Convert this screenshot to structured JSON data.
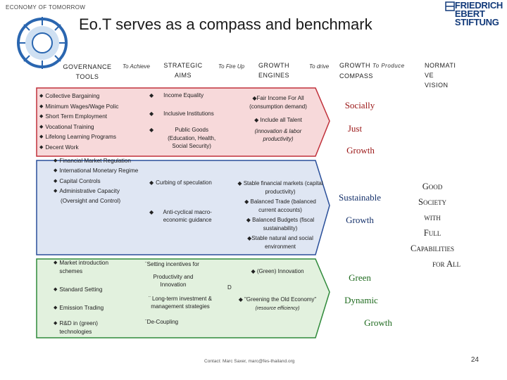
{
  "brand": "ECONOMY OF TOMORROW",
  "title": "Eo.T serves as a compass and benchmark",
  "fes_lines": [
    "FRIEDRICH",
    "EBERT",
    "STIFTUNG"
  ],
  "headers": {
    "governance": [
      "GOVERNANCE",
      "TOOLS"
    ],
    "to_achieve": "To Achieve",
    "strategic": [
      "STRATEGIC",
      "AIMS"
    ],
    "to_fire_up": "To Fire Up",
    "growth_engines": [
      "GROWTH",
      "ENGINES"
    ],
    "to_drive": "To drive",
    "growth_compass": [
      "GROWTH ",
      "To Produce",
      "COMPASS"
    ],
    "normative": [
      "NORMATI",
      "VE",
      "VISION"
    ]
  },
  "red_row": {
    "tools": [
      "Collective Bargaining",
      "Minimum Wages/Wage Polic",
      "Short Term Employment",
      "Vocational Training",
      "Lifelong Learning Programs",
      "Decent Work"
    ],
    "aims": [
      "Income Equality",
      "Inclusive Institutions",
      "Public Goods (Education, Health, Social Security)"
    ],
    "engines": [
      "◆Fair Income For All (consumption demand)",
      "◆ Include all Talent",
      "(innovation & labor productivity)"
    ],
    "compass": [
      "Socially",
      "Just",
      "Growth"
    ]
  },
  "blue_row": {
    "tools": [
      "Financial Market Regulation",
      "International Monetary Regime",
      "Capital Controls",
      "Administrative Capacity",
      "(Oversight and Control)"
    ],
    "aims": [
      "Curbing of speculation",
      "Anti-cyclical macro-economic guidance"
    ],
    "engines": [
      "◆ Stable financial markets (capital productivity)",
      "◆ Balanced Trade (balanced current accounts)",
      "◆ Balanced Budgets (fiscal sustainability)",
      "◆Stable natural and social environment"
    ],
    "compass": [
      "Sustainable",
      "Growth"
    ]
  },
  "green_row": {
    "tools": [
      "Market introduction schemes",
      "Standard Setting",
      "Emission Trading",
      "R&D in (green) technologies"
    ],
    "aims": [
      "¨Setting incentives for",
      "Productivity and Innovation",
      "¨ Long-term investment & management strategies",
      "¨De-Coupling"
    ],
    "stray": "D",
    "engines": [
      "◆ (Green) Innovation",
      "◆ \"Greening the Old Economy\"",
      "(resource efficiency)"
    ],
    "compass": [
      "Green",
      "Dynamic",
      "Growth"
    ]
  },
  "vision": [
    "Good",
    "Society",
    "with",
    "Full",
    "Capabilities",
    "for All"
  ],
  "footer": "Contact: Marc Saxer, marc@fes-thailand.org",
  "page_number": "24",
  "colors": {
    "red_band": "#f7d9da",
    "red_border": "#c0303a",
    "blue_band": "#dfe6f3",
    "blue_border": "#2a4f9a",
    "green_band": "#e2f1de",
    "green_border": "#2f8a3a",
    "logo_blue": "#2a66b0"
  }
}
